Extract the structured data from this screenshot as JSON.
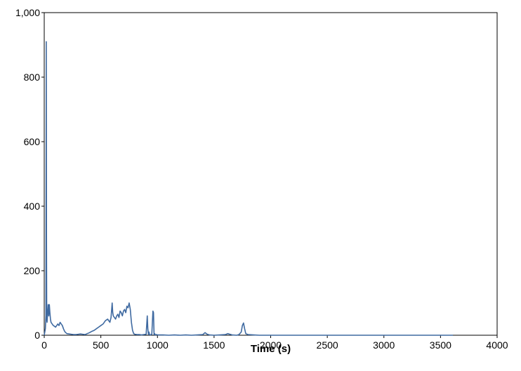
{
  "chart_data": {
    "type": "line",
    "title": "",
    "xlabel": "Time (s)",
    "ylabel": "",
    "xlim": [
      0,
      4000
    ],
    "ylim": [
      0,
      1000
    ],
    "x_ticks": [
      0,
      500,
      1000,
      1500,
      2000,
      2500,
      3000,
      3500,
      4000
    ],
    "y_ticks": [
      0,
      200,
      400,
      600,
      800,
      1000
    ],
    "x_tick_labels": [
      "0",
      "500",
      "1000",
      "1500",
      "2000",
      "2500",
      "3000",
      "3500",
      "4000"
    ],
    "y_tick_labels": [
      "0",
      "200",
      "400",
      "600",
      "800",
      "1,000"
    ],
    "grid": false,
    "legend": "none",
    "colors": {
      "series": "#3f6aa1",
      "axis": "#000000",
      "background": "#ffffff"
    },
    "series": [
      {
        "x": [
          0,
          5,
          10,
          15,
          18,
          20,
          22,
          25,
          30,
          35,
          40,
          45,
          50,
          55,
          60,
          70,
          80,
          90,
          100,
          110,
          120,
          130,
          140,
          150,
          160,
          170,
          180,
          190,
          200,
          220,
          240,
          260,
          280,
          300,
          320,
          340,
          360,
          380,
          400,
          420,
          440,
          460,
          480,
          500,
          520,
          540,
          560,
          580,
          590,
          600,
          605,
          610,
          620,
          630,
          640,
          650,
          660,
          670,
          680,
          690,
          700,
          710,
          720,
          730,
          740,
          750,
          760,
          770,
          780,
          790,
          800,
          820,
          840,
          860,
          880,
          900,
          910,
          915,
          920,
          925,
          930,
          940,
          950,
          960,
          965,
          970,
          975,
          980,
          990,
          1000,
          1050,
          1100,
          1150,
          1200,
          1250,
          1300,
          1350,
          1400,
          1420,
          1440,
          1460,
          1500,
          1550,
          1600,
          1620,
          1640,
          1660,
          1700,
          1720,
          1740,
          1750,
          1760,
          1770,
          1780,
          1800,
          1850,
          1900,
          2000,
          2100,
          2200,
          2300,
          2400,
          2500,
          2600,
          2700,
          2800,
          2900,
          3000,
          3100,
          3200,
          3300,
          3400,
          3500,
          3600,
          3610
        ],
        "values": [
          0,
          10,
          20,
          60,
          910,
          300,
          50,
          40,
          70,
          95,
          60,
          95,
          70,
          50,
          40,
          35,
          30,
          28,
          25,
          30,
          35,
          30,
          40,
          35,
          30,
          20,
          12,
          8,
          5,
          4,
          3,
          2,
          2,
          3,
          4,
          3,
          2,
          5,
          8,
          12,
          15,
          20,
          25,
          30,
          35,
          45,
          50,
          40,
          55,
          100,
          70,
          60,
          55,
          50,
          60,
          65,
          55,
          75,
          70,
          60,
          75,
          80,
          70,
          90,
          85,
          100,
          80,
          40,
          15,
          5,
          3,
          2,
          2,
          1,
          2,
          3,
          60,
          20,
          3,
          10,
          2,
          1,
          3,
          75,
          70,
          2,
          5,
          1,
          2,
          1,
          1,
          0,
          1,
          0,
          1,
          0,
          1,
          2,
          8,
          3,
          1,
          0,
          1,
          2,
          5,
          3,
          1,
          0,
          2,
          10,
          30,
          38,
          20,
          5,
          2,
          1,
          0,
          0,
          0,
          0,
          0,
          0,
          0,
          0,
          0,
          0,
          0,
          0,
          0,
          0,
          0,
          0,
          0,
          0,
          0
        ]
      }
    ]
  }
}
